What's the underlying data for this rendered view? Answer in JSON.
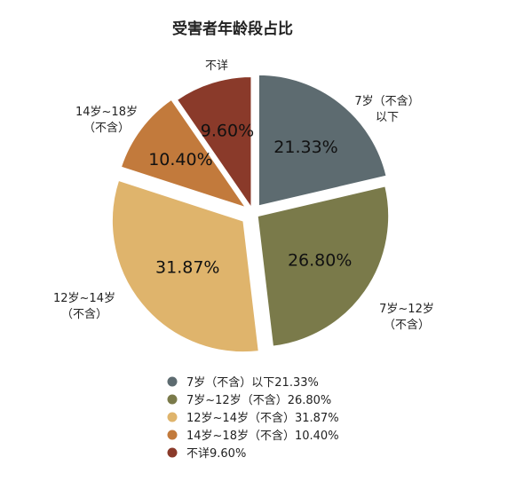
{
  "chart_data": {
    "type": "pie",
    "title": "受害者年龄段占比",
    "slices": [
      {
        "name": "7岁（不含）以下",
        "value": 21.33,
        "label": "21.33%",
        "color": "#5d6b70",
        "outer_label": [
          "7岁（不含）",
          "以下"
        ],
        "legend": "7岁（不含）以下21.33%"
      },
      {
        "name": "7岁~12岁（不含）",
        "value": 26.8,
        "label": "26.80%",
        "color": "#7a7a4a",
        "outer_label": [
          "7岁~12岁",
          "（不含）"
        ],
        "legend": "7岁~12岁（不含）26.80%"
      },
      {
        "name": "12岁~14岁（不含）",
        "value": 31.87,
        "label": "31.87%",
        "color": "#dfb46c",
        "outer_label": [
          "12岁~14岁",
          "（不含）"
        ],
        "legend": "12岁~14岁（不含）31.87%"
      },
      {
        "name": "14岁~18岁（不含）",
        "value": 10.4,
        "label": "10.40%",
        "color": "#c27a3c",
        "outer_label": [
          "14岁~18岁",
          "（不含）"
        ],
        "legend": "14岁~18岁（不含）10.40%"
      },
      {
        "name": "不详",
        "value": 9.6,
        "label": "9.60%",
        "color": "#8a3a2a",
        "outer_label": [
          "不详"
        ],
        "legend": "不详9.60%"
      }
    ]
  }
}
